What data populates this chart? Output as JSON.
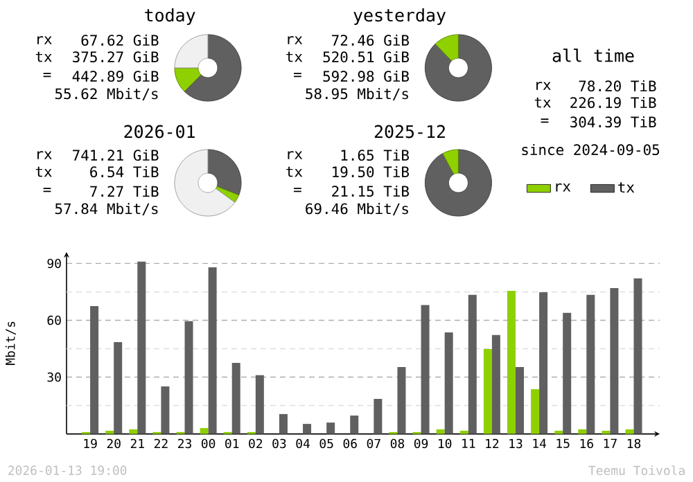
{
  "chart_data": [
    {
      "type": "donut",
      "title": "today",
      "categories": [
        null,
        null,
        null
      ],
      "values": [
        62.5,
        12.5,
        25
      ],
      "colors": [
        "#606060",
        "#8fd000",
        "#f0f0f0"
      ],
      "annotations": [
        "rx",
        "67.62 GiB",
        "tx",
        "375.27 GiB",
        "=",
        "442.89 GiB",
        "55.62 Mbit/s"
      ]
    },
    {
      "type": "donut",
      "title": "yesterday",
      "categories": [
        null,
        null
      ],
      "values": [
        87.8,
        12.2
      ],
      "colors": [
        "#606060",
        "#8fd000"
      ],
      "annotations": [
        "rx",
        "72.46 GiB",
        "tx",
        "520.51 GiB",
        "=",
        "592.98 GiB",
        "58.95 Mbit/s"
      ]
    },
    {
      "type": "donut",
      "title": "2026-01",
      "categories": [
        null,
        null,
        null
      ],
      "values": [
        31,
        4,
        65
      ],
      "colors": [
        "#606060",
        "#8fd000",
        "#f0f0f0"
      ],
      "annotations": [
        "rx",
        "741.21 GiB",
        "tx",
        "6.54 TiB",
        "=",
        "7.27 TiB",
        "57.84 Mbit/s"
      ]
    },
    {
      "type": "donut",
      "title": "2025-12",
      "categories": [
        null,
        null
      ],
      "values": [
        92.2,
        7.8
      ],
      "colors": [
        "#606060",
        "#8fd000"
      ],
      "annotations": [
        "rx",
        "1.65 TiB",
        "tx",
        "19.50 TiB",
        "=",
        "21.15 TiB",
        "69.46 Mbit/s"
      ]
    },
    {
      "type": "other",
      "title": "all time",
      "annotations": [
        "rx",
        "78.20 TiB",
        "tx",
        "226.19 TiB",
        "=",
        "304.39 TiB",
        "since 2024-09-05"
      ]
    },
    {
      "type": "bar",
      "categories": [
        "19",
        "20",
        "21",
        "22",
        "23",
        "00",
        "01",
        "02",
        "03",
        "04",
        "05",
        "06",
        "07",
        "08",
        "09",
        "10",
        "11",
        "12",
        "13",
        "14",
        "15",
        "16",
        "17",
        "18"
      ],
      "series": [
        {
          "name": "rx",
          "color": "#8fd000",
          "values": [
            1,
            1.7,
            2.4,
            1,
            1,
            3.1,
            1,
            1,
            0,
            0,
            0,
            0,
            0,
            1,
            1,
            2.4,
            1.7,
            44.8,
            75.5,
            23.6,
            1.7,
            2.4,
            1.7,
            2.4
          ]
        },
        {
          "name": "tx",
          "color": "#606060",
          "values": [
            67.5,
            48.5,
            91,
            25.1,
            59.5,
            88,
            37.5,
            31,
            10.5,
            5.3,
            6,
            9.7,
            18.5,
            35.3,
            68,
            53.6,
            73.4,
            52.2,
            35.3,
            74.8,
            63.9,
            73.4,
            77,
            82.1
          ]
        }
      ],
      "ylabel": "Mbit/s",
      "ylim": [
        0,
        96
      ],
      "yticks": [
        {
          "value": 15,
          "label": null
        },
        30,
        {
          "value": 45,
          "label": null
        },
        60,
        {
          "value": 75,
          "label": null
        },
        90
      ],
      "grid": "y",
      "legend": "top right",
      "annotations": [
        "2026-01-13 19:00",
        "Teemu Toivola"
      ]
    }
  ]
}
